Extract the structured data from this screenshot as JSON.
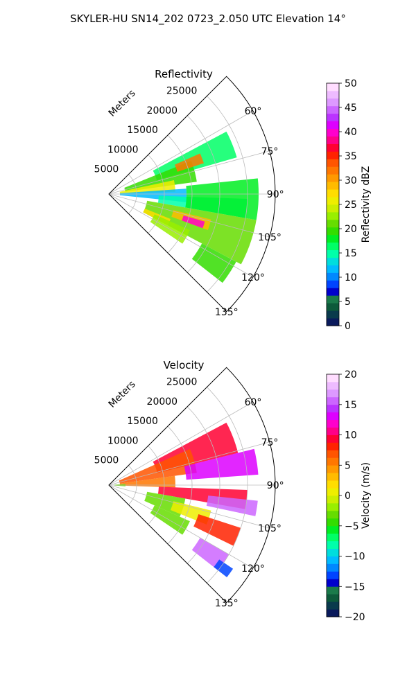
{
  "figure": {
    "title": "SKYLER-HU  SN14_202  0723_2.050 UTC Elevation 14°"
  },
  "chart_data": [
    {
      "type": "heatmap",
      "projection": "polar-sector",
      "title": "Reflectivity",
      "radial_axis_label": "Meters",
      "range_ticks": [
        5000,
        10000,
        15000,
        20000,
        25000
      ],
      "range_tick_labels": [
        "5000",
        "10000",
        "15000",
        "20000",
        "25000"
      ],
      "azimuth_ticks_deg": [
        60,
        75,
        90,
        105,
        120,
        135
      ],
      "azimuth_tick_labels": [
        "60°",
        "75°",
        "90°",
        "105°",
        "120°",
        "135°"
      ],
      "azimuth_range_deg": [
        45,
        135
      ],
      "range_limit_m": 30000,
      "grid": true,
      "colorbar": {
        "label": "Reflectivity dBZ",
        "vmin": 0,
        "vmax": 50,
        "ticks": [
          0,
          5,
          10,
          15,
          20,
          25,
          30,
          35,
          40,
          45,
          50
        ],
        "tick_labels": [
          "0",
          "5",
          "10",
          "15",
          "20",
          "25",
          "30",
          "35",
          "40",
          "45",
          "50"
        ],
        "colors": [
          "#0a1a5c",
          "#0a3a4c",
          "#0d5a3a",
          "#1a7a4a",
          "#0000cc",
          "#0044ff",
          "#0088ff",
          "#00bbff",
          "#00dddd",
          "#00ffaa",
          "#00ff66",
          "#00ee22",
          "#33dd00",
          "#66dd00",
          "#99ee00",
          "#ccee00",
          "#eeee00",
          "#ffdd00",
          "#ffbb00",
          "#ff9900",
          "#ff7700",
          "#ff5500",
          "#ff2200",
          "#ff0033",
          "#ff0088",
          "#ff00cc",
          "#dd00ff",
          "#bb33ff",
          "#cc66ff",
          "#dd99ff",
          "#eebbff",
          "#ffddff"
        ]
      },
      "echoes": [
        {
          "az": [
            62,
            74
          ],
          "r": [
            9000,
            24000
          ],
          "value": 17
        },
        {
          "az": [
            68,
            82
          ],
          "r": [
            3000,
            16000
          ],
          "value": 20
        },
        {
          "az": [
            66,
            72
          ],
          "r": [
            13000,
            18000
          ],
          "value": 32
        },
        {
          "az": [
            78,
            88
          ],
          "r": [
            2000,
            12000
          ],
          "value": 25
        },
        {
          "az": [
            86,
            96
          ],
          "r": [
            2000,
            14000
          ],
          "value": 12
        },
        {
          "az": [
            92,
            100
          ],
          "r": [
            9000,
            25000
          ],
          "value": 15
        },
        {
          "az": [
            84,
            100
          ],
          "r": [
            14000,
            27000
          ],
          "value": 18
        },
        {
          "az": [
            100,
            118
          ],
          "r": [
            7000,
            27000
          ],
          "value": 21
        },
        {
          "az": [
            104,
            110
          ],
          "r": [
            12000,
            19000
          ],
          "value": 29
        },
        {
          "az": [
            106,
            110
          ],
          "r": [
            14000,
            18000
          ],
          "value": 40
        },
        {
          "az": [
            112,
            118
          ],
          "r": [
            7000,
            12000
          ],
          "value": 27
        },
        {
          "az": [
            114,
            124
          ],
          "r": [
            9000,
            16000
          ],
          "value": 23
        },
        {
          "az": [
            118,
            128
          ],
          "r": [
            19000,
            26000
          ],
          "value": 20
        }
      ]
    },
    {
      "type": "heatmap",
      "projection": "polar-sector",
      "title": "Velocity",
      "radial_axis_label": "Meters",
      "range_ticks": [
        5000,
        10000,
        15000,
        20000,
        25000
      ],
      "range_tick_labels": [
        "5000",
        "10000",
        "15000",
        "20000",
        "25000"
      ],
      "azimuth_ticks_deg": [
        60,
        75,
        90,
        105,
        120,
        135
      ],
      "azimuth_tick_labels": [
        "60°",
        "75°",
        "90°",
        "105°",
        "120°",
        "135°"
      ],
      "azimuth_range_deg": [
        45,
        135
      ],
      "range_limit_m": 30000,
      "grid": true,
      "colorbar": {
        "label": "Velocity (m/s)",
        "vmin": -20,
        "vmax": 20,
        "ticks": [
          -20,
          -15,
          -10,
          -5,
          0,
          5,
          10,
          15,
          20
        ],
        "tick_labels": [
          "−20",
          "−15",
          "−10",
          "−5",
          "0",
          "5",
          "10",
          "15",
          "20"
        ],
        "colors": [
          "#0a1a5c",
          "#0a3a4c",
          "#0d5a3a",
          "#1a7a4a",
          "#0000cc",
          "#0044ff",
          "#0088ff",
          "#00bbff",
          "#00dddd",
          "#00ffaa",
          "#00ff66",
          "#00ee22",
          "#33dd00",
          "#66dd00",
          "#99ee00",
          "#ccee00",
          "#eeee00",
          "#ffdd00",
          "#ffbb00",
          "#ff9900",
          "#ff7700",
          "#ff5500",
          "#ff2200",
          "#ff0033",
          "#ff0088",
          "#ff00cc",
          "#dd00ff",
          "#bb33ff",
          "#cc66ff",
          "#dd99ff",
          "#eebbff",
          "#ffddff"
        ]
      },
      "echoes": [
        {
          "az": [
            62,
            76
          ],
          "r": [
            9000,
            24000
          ],
          "value": 9
        },
        {
          "az": [
            66,
            82
          ],
          "r": [
            2000,
            16000
          ],
          "value": 7
        },
        {
          "az": [
            76,
            86
          ],
          "r": [
            14000,
            27000
          ],
          "value": 13
        },
        {
          "az": [
            82,
            92
          ],
          "r": [
            2000,
            12000
          ],
          "value": 6
        },
        {
          "az": [
            92,
            100
          ],
          "r": [
            9000,
            25000
          ],
          "value": 9
        },
        {
          "az": [
            96,
            102
          ],
          "r": [
            18000,
            27000
          ],
          "value": 15
        },
        {
          "az": [
            100,
            114
          ],
          "r": [
            7000,
            14000
          ],
          "value": -3
        },
        {
          "az": [
            104,
            112
          ],
          "r": [
            12000,
            19000
          ],
          "value": 1
        },
        {
          "az": [
            108,
            116
          ],
          "r": [
            17000,
            25000
          ],
          "value": 8
        },
        {
          "az": [
            114,
            124
          ],
          "r": [
            9000,
            16000
          ],
          "value": -3
        },
        {
          "az": [
            120,
            128
          ],
          "r": [
            19000,
            25000
          ],
          "value": 15
        },
        {
          "az": [
            124,
            128
          ],
          "r": [
            24000,
            27000
          ],
          "value": -13
        },
        {
          "az": [
            86,
            94
          ],
          "r": [
            1000,
            3000
          ],
          "value": -3
        }
      ]
    }
  ]
}
